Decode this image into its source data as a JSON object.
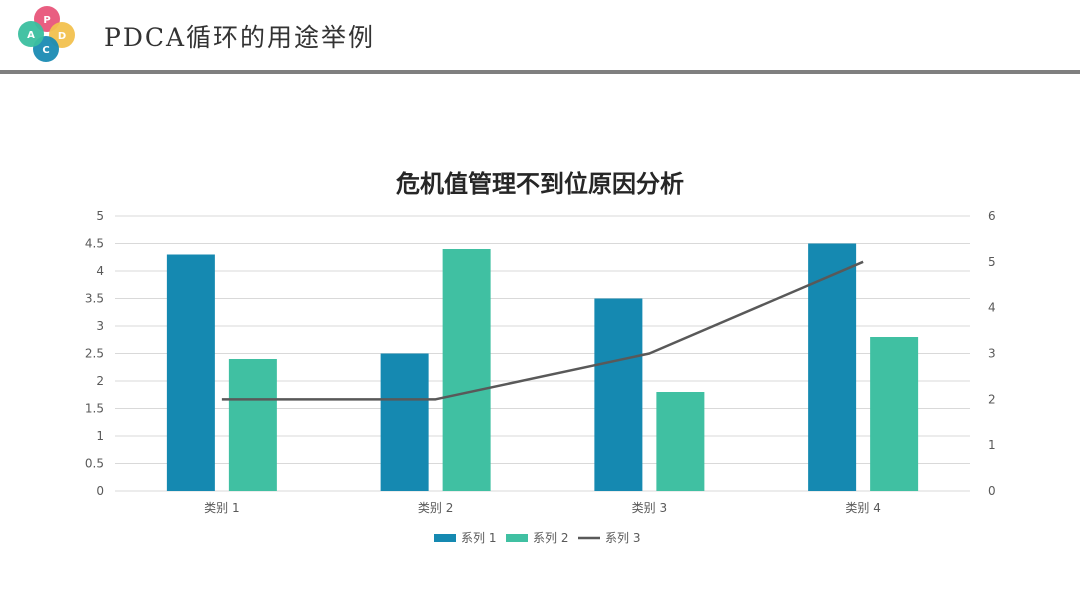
{
  "header": {
    "title": "PDCA循环的用途举例",
    "logo": {
      "letters": [
        "P",
        "D",
        "C",
        "A"
      ],
      "colors": [
        "#e8557a",
        "#f2c14e",
        "#1a8bb3",
        "#3bbf9f"
      ]
    }
  },
  "colors": {
    "series1": "#1589b1",
    "series2": "#40c0a2",
    "series3": "#595959",
    "grid": "#d9d9d9",
    "header_rule": "#7f7f7f"
  },
  "chart_data": {
    "type": "bar",
    "title": "危机值管理不到位原因分析",
    "categories": [
      "类别 1",
      "类别 2",
      "类别 3",
      "类别 4"
    ],
    "ylim": [
      0,
      5
    ],
    "yticks": [
      "0",
      "0.5",
      "1",
      "1.5",
      "2",
      "2.5",
      "3",
      "3.5",
      "4",
      "4.5",
      "5"
    ],
    "y2lim": [
      0,
      6
    ],
    "y2ticks": [
      "0",
      "1",
      "2",
      "3",
      "4",
      "5",
      "6"
    ],
    "grid": true,
    "legend": "bottom",
    "series": [
      {
        "name": "系列 1",
        "type": "bar",
        "axis": "left",
        "values": [
          4.3,
          2.5,
          3.5,
          4.5
        ]
      },
      {
        "name": "系列 2",
        "type": "bar",
        "axis": "left",
        "values": [
          2.4,
          4.4,
          1.8,
          2.8
        ]
      },
      {
        "name": "系列 3",
        "type": "line",
        "axis": "right",
        "values": [
          2,
          2,
          3,
          5
        ]
      }
    ]
  }
}
